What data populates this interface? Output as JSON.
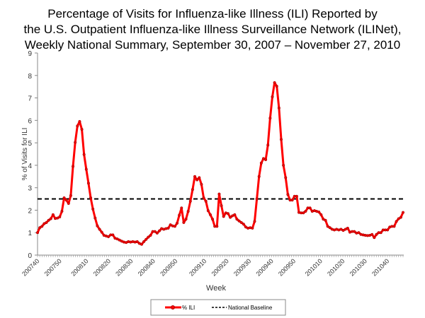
{
  "chart_data": {
    "type": "line",
    "title": [
      "Percentage of Visits for Influenza-like Illness (ILI) Reported by",
      "the U.S. Outpatient Influenza-like Illness Surveillance Network (ILINet),",
      "Weekly National Summary, September 30, 2007 – November 27, 2010"
    ],
    "xlabel": "Week",
    "ylabel": "% of Visits for ILI",
    "ylim": [
      0,
      9
    ],
    "yticks": [
      "0",
      "1",
      "2",
      "3",
      "4",
      "5",
      "6",
      "7",
      "8",
      "9"
    ],
    "x_start": "200740",
    "x_end": "201047",
    "xticks": [
      "200740",
      "200750",
      "200810",
      "200820",
      "200830",
      "200840",
      "200850",
      "200910",
      "200920",
      "200930",
      "200940",
      "200950",
      "201010",
      "201020",
      "201030",
      "201040"
    ],
    "grid": false,
    "legend_position": "bottom-center",
    "series": [
      {
        "name": "% ILI",
        "color": "#ff0000",
        "values": [
          1.0,
          1.22,
          1.28,
          1.4,
          1.45,
          1.55,
          1.62,
          1.8,
          1.63,
          1.65,
          1.7,
          1.95,
          2.55,
          2.45,
          2.3,
          2.65,
          3.95,
          5.02,
          5.75,
          5.95,
          5.6,
          4.48,
          3.82,
          3.2,
          2.55,
          2.05,
          1.65,
          1.3,
          1.15,
          1.02,
          0.88,
          0.85,
          0.82,
          0.9,
          0.9,
          0.75,
          0.72,
          0.67,
          0.62,
          0.58,
          0.56,
          0.6,
          0.58,
          0.6,
          0.58,
          0.6,
          0.52,
          0.48,
          0.6,
          0.7,
          0.8,
          0.88,
          1.05,
          1.05,
          0.98,
          1.08,
          1.18,
          1.15,
          1.18,
          1.2,
          1.35,
          1.3,
          1.28,
          1.42,
          1.78,
          2.1,
          1.45,
          1.6,
          1.95,
          2.4,
          2.92,
          3.5,
          3.35,
          3.45,
          3.15,
          2.55,
          2.4,
          1.98,
          1.8,
          1.6,
          1.28,
          1.28,
          2.72,
          2.2,
          1.72,
          1.88,
          1.85,
          1.68,
          1.75,
          1.8,
          1.6,
          1.52,
          1.45,
          1.38,
          1.25,
          1.2,
          1.22,
          1.2,
          1.5,
          2.5,
          3.5,
          4.1,
          4.3,
          4.25,
          4.9,
          6.1,
          7.05,
          7.68,
          7.52,
          6.55,
          5.15,
          4.0,
          3.45,
          2.7,
          2.45,
          2.45,
          2.62,
          2.62,
          1.9,
          1.88,
          1.88,
          1.95,
          2.1,
          2.1,
          1.95,
          1.98,
          1.95,
          1.92,
          1.8,
          1.6,
          1.55,
          1.28,
          1.22,
          1.15,
          1.12,
          1.15,
          1.12,
          1.15,
          1.1,
          1.15,
          1.2,
          1.02,
          1.05,
          1.05,
          0.98,
          1.0,
          0.92,
          0.9,
          0.88,
          0.87,
          0.88,
          0.92,
          0.78,
          0.92,
          1.0,
          1.0,
          1.12,
          1.12,
          1.12,
          1.25,
          1.28,
          1.28,
          1.5,
          1.62,
          1.68,
          1.9
        ]
      },
      {
        "name": "National Baseline",
        "color": "#000000",
        "constant": 2.5
      }
    ]
  }
}
